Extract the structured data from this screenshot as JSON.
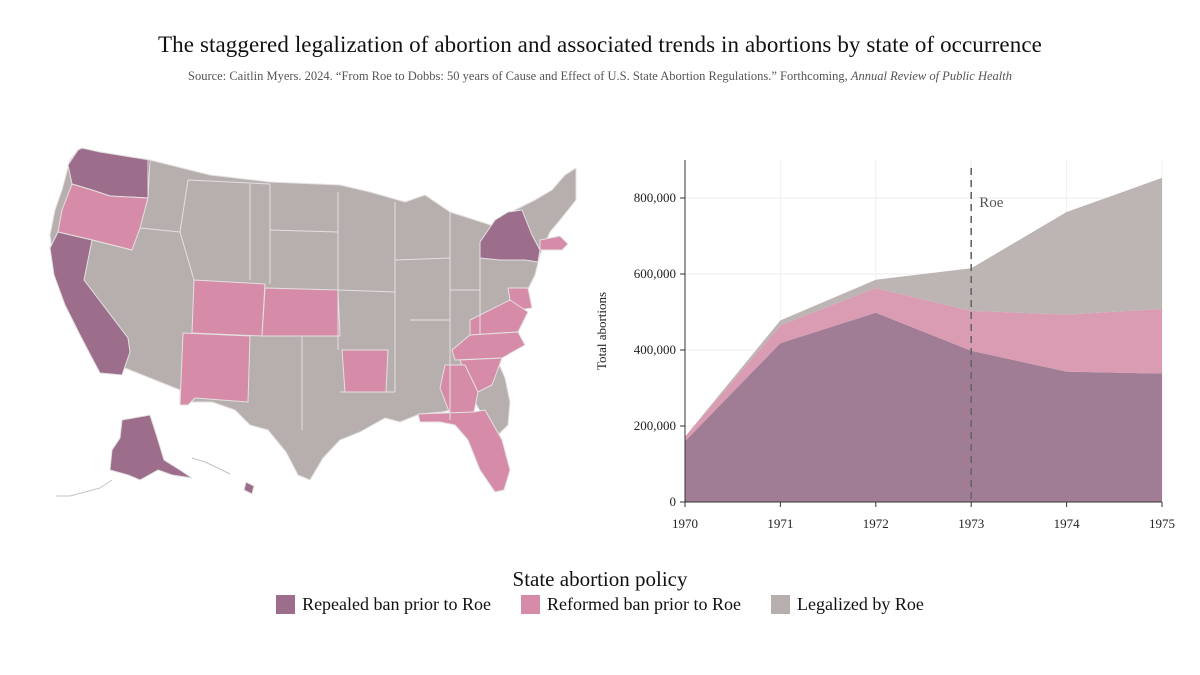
{
  "title": "The staggered legalization of abortion and associated trends in abortions by state of occurrence",
  "source": {
    "text": "Source:  Caitlin  Myers.  2024. “From Roe to Dobbs: 50 years of Cause and Effect  of U.S. State Abortion Regulations.”  Forthcoming,",
    "journal": "Annual Review of Public Health"
  },
  "colors": {
    "repealed": "#a07c95",
    "reformed": "#d99cb2",
    "legalized": "#bcb5b4",
    "map_repealed": "#9c6e8c",
    "map_reformed": "#d68ca8",
    "map_legalized": "#b6afae",
    "map_border": "#e4e0e0"
  },
  "map": {
    "legend_mapping": "State fill indicates abortion policy category",
    "states": [
      {
        "name": "Washington",
        "category": "repealed"
      },
      {
        "name": "Oregon",
        "category": "reformed"
      },
      {
        "name": "California",
        "category": "repealed"
      },
      {
        "name": "Alaska",
        "category": "repealed"
      },
      {
        "name": "Hawaii",
        "category": "repealed"
      },
      {
        "name": "New York",
        "category": "repealed"
      },
      {
        "name": "Colorado",
        "category": "reformed"
      },
      {
        "name": "New Mexico",
        "category": "reformed"
      },
      {
        "name": "Kansas",
        "category": "reformed"
      },
      {
        "name": "Arkansas",
        "category": "reformed"
      },
      {
        "name": "Georgia",
        "category": "reformed"
      },
      {
        "name": "Florida",
        "category": "reformed"
      },
      {
        "name": "South Carolina",
        "category": "reformed"
      },
      {
        "name": "North Carolina",
        "category": "reformed"
      },
      {
        "name": "Virginia",
        "category": "reformed"
      },
      {
        "name": "Maryland",
        "category": "reformed"
      },
      {
        "name": "Delaware",
        "category": "reformed"
      },
      {
        "name": "Massachusetts",
        "category": "reformed"
      }
    ]
  },
  "chart_data": {
    "type": "area",
    "stacked": true,
    "title": "",
    "xlabel": "",
    "ylabel": "Total abortions",
    "x": [
      1970,
      1971,
      1972,
      1973,
      1974,
      1975
    ],
    "xticks": [
      "1970",
      "1971",
      "1972",
      "1973",
      "1974",
      "1975"
    ],
    "ylim": [
      0,
      900000
    ],
    "yticks": [
      0,
      200000,
      400000,
      600000,
      800000
    ],
    "ytick_labels": [
      "0",
      "200,000",
      "400,000",
      "600,000",
      "800,000"
    ],
    "series": [
      {
        "name": "Repealed ban prior to Roe",
        "key": "repealed",
        "values": [
          160000,
          418000,
          498000,
          398000,
          343000,
          338000
        ]
      },
      {
        "name": "Reformed ban prior to Roe",
        "key": "reformed",
        "values": [
          12000,
          47000,
          65000,
          105000,
          150000,
          170000
        ]
      },
      {
        "name": "Legalized by Roe",
        "key": "legalized",
        "values": [
          0,
          13000,
          22000,
          112000,
          270000,
          345000
        ]
      }
    ],
    "vline": {
      "x": 1973,
      "label": "Roe"
    }
  },
  "legend": {
    "title": "State abortion policy",
    "items": [
      {
        "label": "Repealed ban prior to Roe",
        "key": "repealed"
      },
      {
        "label": "Reformed ban prior to Roe",
        "key": "reformed"
      },
      {
        "label": "Legalized by Roe",
        "key": "legalized"
      }
    ]
  }
}
